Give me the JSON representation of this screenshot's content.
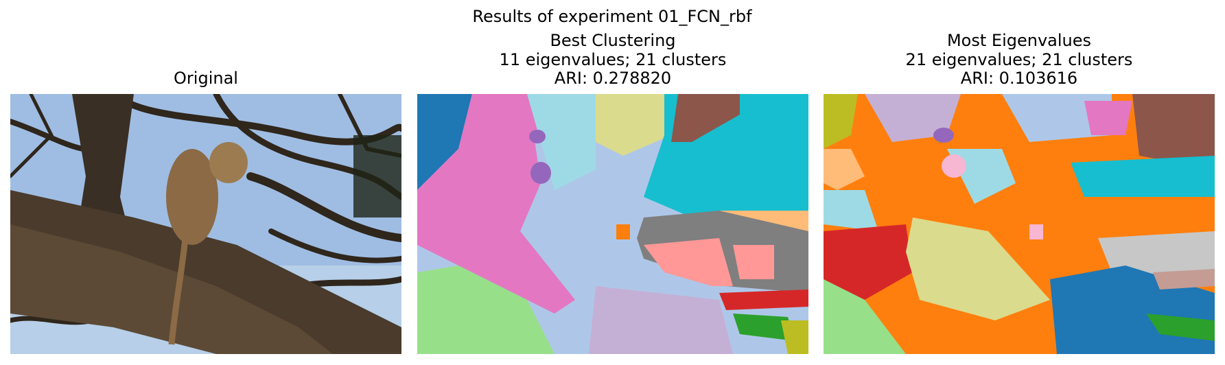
{
  "figure": {
    "title": "Results of experiment 01_FCN_rbf",
    "panels": [
      {
        "title_lines": [
          "Original"
        ]
      },
      {
        "title_lines": [
          "Best Clustering",
          "11 eigenvalues; 21 clusters",
          "ARI: 0.278820"
        ]
      },
      {
        "title_lines": [
          "Most Eigenvalues",
          "21 eigenvalues; 21 clusters",
          "ARI: 0.103616"
        ]
      }
    ]
  }
}
